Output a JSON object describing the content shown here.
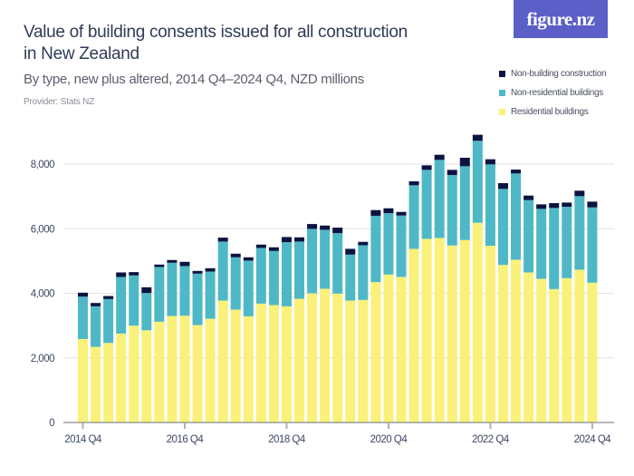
{
  "logo": "figure.nz",
  "chart_data": {
    "type": "bar",
    "stacked": true,
    "title": "Value of building consents issued for all construction in New Zealand",
    "subtitle": "By type, new plus altered, 2014 Q4–2024 Q4, NZD millions",
    "provider": "Provider: Stats NZ",
    "xlabel": "",
    "ylabel": "",
    "ylim": [
      0,
      8000
    ],
    "yticks": [
      0,
      2000,
      4000,
      6000,
      8000
    ],
    "ytick_labels": [
      "0",
      "2,000",
      "4,000",
      "6,000",
      "8,000"
    ],
    "xtick_labels": [
      "2014 Q4",
      "2016 Q4",
      "2018 Q4",
      "2020 Q4",
      "2022 Q4",
      "2024 Q4"
    ],
    "grid": true,
    "legend_position": "top-right",
    "categories": [
      "2014 Q4",
      "2015 Q1",
      "2015 Q2",
      "2015 Q3",
      "2015 Q4",
      "2016 Q1",
      "2016 Q2",
      "2016 Q3",
      "2016 Q4",
      "2017 Q1",
      "2017 Q2",
      "2017 Q3",
      "2017 Q4",
      "2018 Q1",
      "2018 Q2",
      "2018 Q3",
      "2018 Q4",
      "2019 Q1",
      "2019 Q2",
      "2019 Q3",
      "2019 Q4",
      "2020 Q1",
      "2020 Q2",
      "2020 Q3",
      "2020 Q4",
      "2021 Q1",
      "2021 Q2",
      "2021 Q3",
      "2021 Q4",
      "2022 Q1",
      "2022 Q2",
      "2022 Q3",
      "2022 Q4",
      "2023 Q1",
      "2023 Q2",
      "2023 Q3",
      "2023 Q4",
      "2024 Q1",
      "2024 Q2",
      "2024 Q3",
      "2024 Q4"
    ],
    "series": [
      {
        "name": "Residential buildings",
        "color": "#f9f17a",
        "values": [
          2585,
          2342,
          2464,
          2754,
          2998,
          2857,
          3119,
          3297,
          3307,
          3016,
          3213,
          3775,
          3494,
          3288,
          3681,
          3635,
          3597,
          3831,
          4000,
          4141,
          3991,
          3775,
          3794,
          4347,
          4581,
          4506,
          5377,
          5686,
          5714,
          5480,
          5649,
          6183,
          5471,
          4880,
          5040,
          4646,
          4450,
          4131,
          4468,
          4731,
          4328
        ]
      },
      {
        "name": "Non-residential buildings",
        "color": "#4fb8c6",
        "values": [
          1312,
          1255,
          1358,
          1752,
          1555,
          1152,
          1696,
          1649,
          1536,
          1593,
          1461,
          1827,
          1621,
          1724,
          1724,
          1676,
          1986,
          1771,
          1995,
          1826,
          1873,
          1424,
          1695,
          2051,
          1901,
          1902,
          1967,
          2136,
          2417,
          2183,
          2285,
          2538,
          2520,
          2352,
          2670,
          2239,
          2164,
          2511,
          2211,
          2276,
          2332
        ]
      },
      {
        "name": "Non-building construction",
        "color": "#0b1441",
        "values": [
          122,
          103,
          94,
          140,
          103,
          178,
          75,
          84,
          131,
          84,
          103,
          122,
          112,
          103,
          103,
          113,
          159,
          131,
          150,
          131,
          169,
          178,
          104,
          178,
          150,
          112,
          122,
          141,
          159,
          159,
          263,
          188,
          159,
          178,
          121,
          141,
          140,
          150,
          131,
          169,
          178
        ]
      }
    ]
  }
}
